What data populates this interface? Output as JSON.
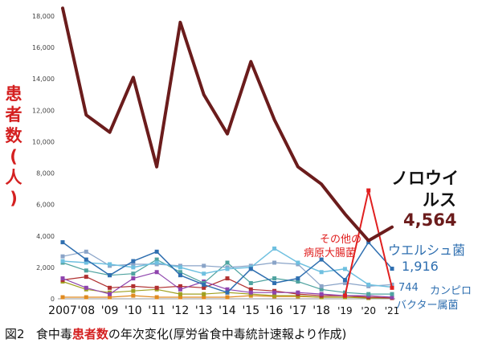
{
  "chart_data": {
    "type": "line",
    "ylabel": "患者数(人)",
    "ylim": [
      0,
      18000
    ],
    "yticks": [
      "0",
      "2,000",
      "4,000",
      "6,000",
      "8,000",
      "10,000",
      "12,000",
      "14,000",
      "16,000",
      "18,000"
    ],
    "grid": false,
    "x_tick_labels": [
      "2007",
      "'08",
      "'09",
      "'10",
      "'11",
      "'12",
      "'13",
      "'14",
      "'15",
      "'16",
      "'17",
      "'18",
      "'19",
      "'20",
      "'21"
    ],
    "x": [
      2007,
      2008,
      2009,
      2010,
      2011,
      2012,
      2013,
      2014,
      2015,
      2016,
      2017,
      2018,
      2019,
      2020,
      2021
    ],
    "series": [
      {
        "name": "ノロウイルス",
        "color": "#6b1c1c",
        "width": 4,
        "values": [
          18500,
          11700,
          10600,
          14100,
          8400,
          17600,
          13000,
          10500,
          15100,
          11400,
          8400,
          7300,
          5400,
          3700,
          4564
        ]
      },
      {
        "name": "その他の病原大腸菌",
        "color": "#e02020",
        "width": 2,
        "values": [
          null,
          null,
          null,
          null,
          null,
          null,
          null,
          null,
          null,
          null,
          null,
          null,
          200,
          6900,
          700
        ]
      },
      {
        "name": "ウエルシュ菌",
        "color": "#2f6fb0",
        "width": 1.5,
        "values": [
          3600,
          2500,
          1500,
          2400,
          3000,
          1500,
          900,
          400,
          1900,
          1000,
          1300,
          2500,
          1200,
          3600,
          1916
        ]
      },
      {
        "name": "カンピロバクター属菌",
        "color": "#6fc0e0",
        "width": 1.5,
        "values": [
          2400,
          2300,
          2200,
          2000,
          2300,
          2000,
          1600,
          1900,
          2000,
          3200,
          2300,
          1700,
          1900,
          900,
          744
        ]
      },
      {
        "name": "",
        "color": "#8aa4c8",
        "width": 1.2,
        "values": [
          2700,
          3000,
          2100,
          2200,
          2200,
          2100,
          2100,
          2000,
          2100,
          2300,
          2200,
          800,
          1000,
          800,
          900
        ]
      },
      {
        "name": "",
        "color": "#4fa3a0",
        "width": 1.2,
        "values": [
          2300,
          1800,
          1500,
          1600,
          2500,
          1700,
          1000,
          2300,
          1000,
          1300,
          1100,
          600,
          400,
          300,
          300
        ]
      },
      {
        "name": "",
        "color": "#8e44ad",
        "width": 1.2,
        "values": [
          1300,
          700,
          300,
          1300,
          1700,
          600,
          1100,
          600,
          400,
          400,
          400,
          300,
          200,
          200,
          100
        ]
      },
      {
        "name": "",
        "color": "#b03030",
        "width": 1.2,
        "values": [
          1200,
          1400,
          700,
          800,
          700,
          800,
          700,
          1300,
          600,
          500,
          300,
          200,
          200,
          100,
          50
        ]
      },
      {
        "name": "",
        "color": "#a0a020",
        "width": 1.2,
        "values": [
          1100,
          600,
          400,
          500,
          600,
          300,
          300,
          400,
          300,
          200,
          200,
          100,
          100,
          50,
          50
        ]
      },
      {
        "name": "",
        "color": "#e08a20",
        "width": 1.2,
        "values": [
          100,
          100,
          100,
          200,
          100,
          100,
          100,
          100,
          200,
          150,
          150,
          100,
          100,
          100,
          50
        ]
      }
    ]
  },
  "annotations": {
    "noro_l1": "ノロウイ",
    "noro_l2": "ルス",
    "noro_val": "4,564",
    "ecoli_l1": "その他の",
    "ecoli_l2": "病原大腸菌",
    "welchii": "ウエルシュ菌",
    "welchii_val": "1,916",
    "campylo_val": "744",
    "campylo_l1": "カンピロ",
    "campylo_l2": "バクター属菌"
  },
  "ytitle_chars": [
    "患",
    "者",
    "数",
    "(",
    "人",
    ")"
  ],
  "caption": {
    "fig": "図2",
    "pre": "食中毒",
    "red": "患者数",
    "post": "の年次変化(厚労省食中毒統計速報より作成)"
  }
}
